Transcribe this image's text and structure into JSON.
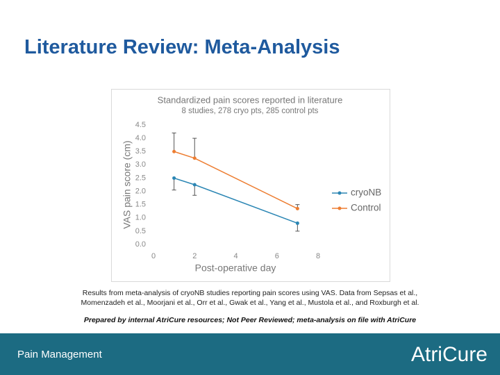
{
  "slide": {
    "title": "Literature Review: Meta-Analysis",
    "caption": [
      "Results from meta-analysis of cryoNB studies reporting pain scores using VAS. Data from Sepsas et al., ",
      "Momenzadeh et al., Moorjani et al., Orr et al., Gwak et al., Yang et al., Mustola et al., and Roxburgh et al."
    ],
    "note": "Prepared by internal AtriCure resources; Not Peer Reviewed; meta-analysis on file with AtriCure",
    "footer": "Pain Management",
    "logo": "AtriCure"
  },
  "chart_data": {
    "type": "line",
    "title": "Standardized pain scores reported in literature",
    "subtitle": "8 studies, 278 cryo pts, 285 control pts",
    "x_label": "Post-operative day",
    "y_label": "VAS pain score (cm)",
    "x": [
      1,
      2,
      7
    ],
    "series": [
      {
        "name": "cryoNB",
        "color": "#2b86b4",
        "values": [
          2.5,
          2.25,
          0.8
        ],
        "errors": [
          0.45,
          0.4,
          0.3
        ],
        "error_direction": "down"
      },
      {
        "name": "Control",
        "color": "#ed7d31",
        "values": [
          3.5,
          3.25,
          1.35
        ],
        "errors": [
          0.7,
          0.75,
          0.15
        ],
        "error_direction": "up"
      }
    ],
    "xlim": [
      0,
      8
    ],
    "xticks": [
      0,
      2,
      4,
      6,
      8
    ],
    "ylim": [
      0,
      4.5
    ],
    "yticks": [
      {
        "value": 0,
        "label": "0.0"
      },
      0.5,
      {
        "value": 1,
        "label": "1.0"
      },
      1.5,
      {
        "value": 2,
        "label": "2.0"
      },
      2.5,
      {
        "value": 3,
        "label": "3.0"
      },
      3.5,
      {
        "value": 4,
        "label": "4.0"
      },
      4.5
    ],
    "grid": false,
    "legend": "right"
  }
}
